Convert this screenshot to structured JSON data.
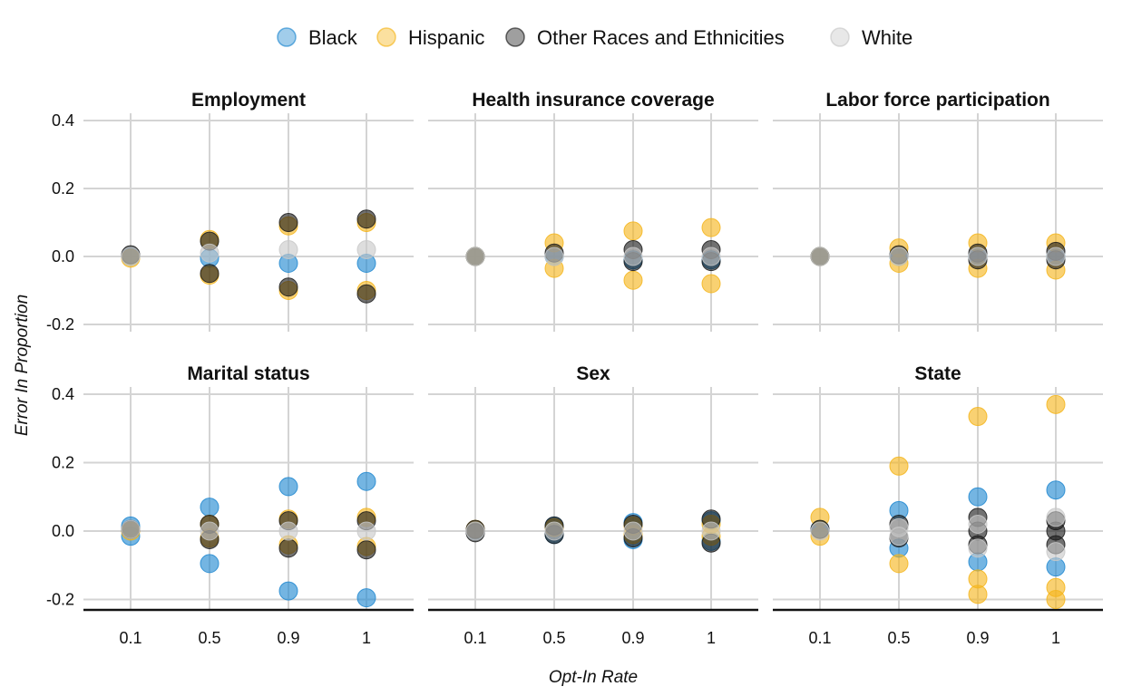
{
  "chart_data": {
    "type": "scatter",
    "xlabel": "Opt-In Rate",
    "ylabel": "Error In Proportion",
    "x_categories": [
      "0.1",
      "0.5",
      "0.9",
      "1"
    ],
    "y_ticks": [
      -0.2,
      0.0,
      0.2,
      0.4
    ],
    "y_tick_labels": [
      "-0.2",
      "0.0",
      "0.2",
      "0.4"
    ],
    "ylim": [
      -0.235,
      0.43
    ],
    "grid": true,
    "legend_position": "top",
    "series": [
      {
        "name": "Black",
        "color": "#1f87d0"
      },
      {
        "name": "Hispanic",
        "color": "#f5b51b"
      },
      {
        "name": "Other Races and Ethnicities",
        "color": "#1a1a1a"
      },
      {
        "name": "White",
        "color": "#c8c8c8"
      }
    ],
    "facets": [
      {
        "title": "Employment",
        "points": {
          "Black": [
            [
              "0.1",
              0.0
            ],
            [
              "0.5",
              -0.005
            ],
            [
              "0.9",
              -0.02
            ],
            [
              "1",
              -0.02
            ]
          ],
          "Hispanic": [
            [
              "0.1",
              -0.005
            ],
            [
              "0.5",
              0.05
            ],
            [
              "0.5",
              -0.055
            ],
            [
              "0.9",
              0.09
            ],
            [
              "0.9",
              -0.1
            ],
            [
              "1",
              0.1
            ],
            [
              "1",
              -0.1
            ]
          ],
          "Other Races and Ethnicities": [
            [
              "0.1",
              0.005
            ],
            [
              "0.5",
              0.045
            ],
            [
              "0.5",
              -0.05
            ],
            [
              "0.9",
              0.1
            ],
            [
              "0.9",
              -0.09
            ],
            [
              "1",
              0.11
            ],
            [
              "1",
              -0.11
            ]
          ],
          "White": [
            [
              "0.1",
              0.0
            ],
            [
              "0.5",
              0.01
            ],
            [
              "0.9",
              0.02
            ],
            [
              "1",
              0.02
            ]
          ]
        }
      },
      {
        "title": "Health insurance coverage",
        "points": {
          "Black": [
            [
              "0.1",
              0.0
            ],
            [
              "0.5",
              0.0
            ],
            [
              "0.9",
              -0.01
            ],
            [
              "1",
              -0.01
            ]
          ],
          "Hispanic": [
            [
              "0.1",
              0.0
            ],
            [
              "0.5",
              0.04
            ],
            [
              "0.5",
              -0.035
            ],
            [
              "0.9",
              0.075
            ],
            [
              "0.9",
              -0.07
            ],
            [
              "1",
              0.085
            ],
            [
              "1",
              -0.08
            ]
          ],
          "Other Races and Ethnicities": [
            [
              "0.1",
              0.0
            ],
            [
              "0.5",
              0.01
            ],
            [
              "0.9",
              0.02
            ],
            [
              "0.9",
              -0.015
            ],
            [
              "1",
              0.02
            ],
            [
              "1",
              -0.015
            ]
          ],
          "White": [
            [
              "0.1",
              0.0
            ],
            [
              "0.5",
              0.0
            ],
            [
              "0.9",
              0.0
            ],
            [
              "1",
              0.0
            ]
          ]
        }
      },
      {
        "title": "Labor force participation",
        "points": {
          "Black": [
            [
              "0.1",
              0.0
            ],
            [
              "0.5",
              0.0
            ],
            [
              "0.9",
              0.0
            ],
            [
              "1",
              0.0
            ]
          ],
          "Hispanic": [
            [
              "0.1",
              0.0
            ],
            [
              "0.5",
              0.025
            ],
            [
              "0.5",
              -0.02
            ],
            [
              "0.9",
              0.04
            ],
            [
              "0.9",
              -0.035
            ],
            [
              "1",
              0.04
            ],
            [
              "1",
              -0.04
            ]
          ],
          "Other Races and Ethnicities": [
            [
              "0.1",
              0.0
            ],
            [
              "0.5",
              0.005
            ],
            [
              "0.9",
              0.01
            ],
            [
              "0.9",
              -0.01
            ],
            [
              "1",
              0.015
            ],
            [
              "1",
              -0.01
            ]
          ],
          "White": [
            [
              "0.1",
              0.0
            ],
            [
              "0.5",
              0.0
            ],
            [
              "0.9",
              0.0
            ],
            [
              "1",
              0.0
            ]
          ]
        }
      },
      {
        "title": "Marital status",
        "points": {
          "Black": [
            [
              "0.1",
              0.015
            ],
            [
              "0.1",
              -0.015
            ],
            [
              "0.5",
              0.07
            ],
            [
              "0.5",
              -0.095
            ],
            [
              "0.9",
              0.13
            ],
            [
              "0.9",
              -0.175
            ],
            [
              "1",
              0.145
            ],
            [
              "1",
              -0.195
            ]
          ],
          "Hispanic": [
            [
              "0.1",
              0.0
            ],
            [
              "0.5",
              0.02
            ],
            [
              "0.5",
              -0.02
            ],
            [
              "0.9",
              0.035
            ],
            [
              "0.9",
              -0.04
            ],
            [
              "1",
              0.04
            ],
            [
              "1",
              -0.045
            ]
          ],
          "Other Races and Ethnicities": [
            [
              "0.1",
              0.005
            ],
            [
              "0.5",
              0.02
            ],
            [
              "0.5",
              -0.025
            ],
            [
              "0.9",
              0.03
            ],
            [
              "0.9",
              -0.05
            ],
            [
              "1",
              0.03
            ],
            [
              "1",
              -0.055
            ]
          ],
          "White": [
            [
              "0.1",
              0.005
            ],
            [
              "0.5",
              0.0
            ],
            [
              "0.9",
              0.0
            ],
            [
              "1",
              0.0
            ]
          ]
        }
      },
      {
        "title": "Sex",
        "points": {
          "Black": [
            [
              "0.1",
              0.0
            ],
            [
              "0.5",
              0.015
            ],
            [
              "0.5",
              -0.01
            ],
            [
              "0.9",
              0.025
            ],
            [
              "0.9",
              -0.025
            ],
            [
              "1",
              0.03
            ],
            [
              "1",
              -0.03
            ]
          ],
          "Hispanic": [
            [
              "0.1",
              0.005
            ],
            [
              "0.5",
              0.01
            ],
            [
              "0.9",
              0.015
            ],
            [
              "0.9",
              -0.01
            ],
            [
              "1",
              0.02
            ],
            [
              "1",
              -0.015
            ]
          ],
          "Other Races and Ethnicities": [
            [
              "0.1",
              0.005
            ],
            [
              "0.1",
              -0.005
            ],
            [
              "0.5",
              0.015
            ],
            [
              "0.5",
              -0.01
            ],
            [
              "0.9",
              0.02
            ],
            [
              "0.9",
              -0.02
            ],
            [
              "1",
              0.035
            ],
            [
              "1",
              -0.035
            ]
          ],
          "White": [
            [
              "0.1",
              0.0
            ],
            [
              "0.5",
              0.0
            ],
            [
              "0.9",
              0.0
            ],
            [
              "1",
              0.0
            ]
          ]
        }
      },
      {
        "title": "State",
        "points": {
          "Black": [
            [
              "0.1",
              0.005
            ],
            [
              "0.5",
              0.06
            ],
            [
              "0.5",
              -0.05
            ],
            [
              "0.9",
              0.1
            ],
            [
              "0.9",
              -0.09
            ],
            [
              "1",
              0.12
            ],
            [
              "1",
              -0.105
            ]
          ],
          "Hispanic": [
            [
              "0.1",
              0.04
            ],
            [
              "0.1",
              -0.015
            ],
            [
              "0.5",
              0.19
            ],
            [
              "0.5",
              -0.095
            ],
            [
              "0.9",
              0.335
            ],
            [
              "0.9",
              -0.14
            ],
            [
              "0.9",
              -0.185
            ],
            [
              "1",
              0.37
            ],
            [
              "1",
              -0.165
            ],
            [
              "1",
              -0.2
            ]
          ],
          "Other Races and Ethnicities": [
            [
              "0.1",
              0.005
            ],
            [
              "0.5",
              0.02
            ],
            [
              "0.5",
              -0.02
            ],
            [
              "0.9",
              0.04
            ],
            [
              "0.9",
              -0.04
            ],
            [
              "0.9",
              0.0
            ],
            [
              "1",
              0.03
            ],
            [
              "1",
              -0.04
            ],
            [
              "1",
              0.0
            ]
          ],
          "White": [
            [
              "0.1",
              0.0
            ],
            [
              "0.5",
              0.01
            ],
            [
              "0.5",
              -0.015
            ],
            [
              "0.9",
              0.02
            ],
            [
              "0.9",
              -0.05
            ],
            [
              "1",
              0.04
            ],
            [
              "1",
              -0.06
            ]
          ]
        }
      }
    ]
  }
}
